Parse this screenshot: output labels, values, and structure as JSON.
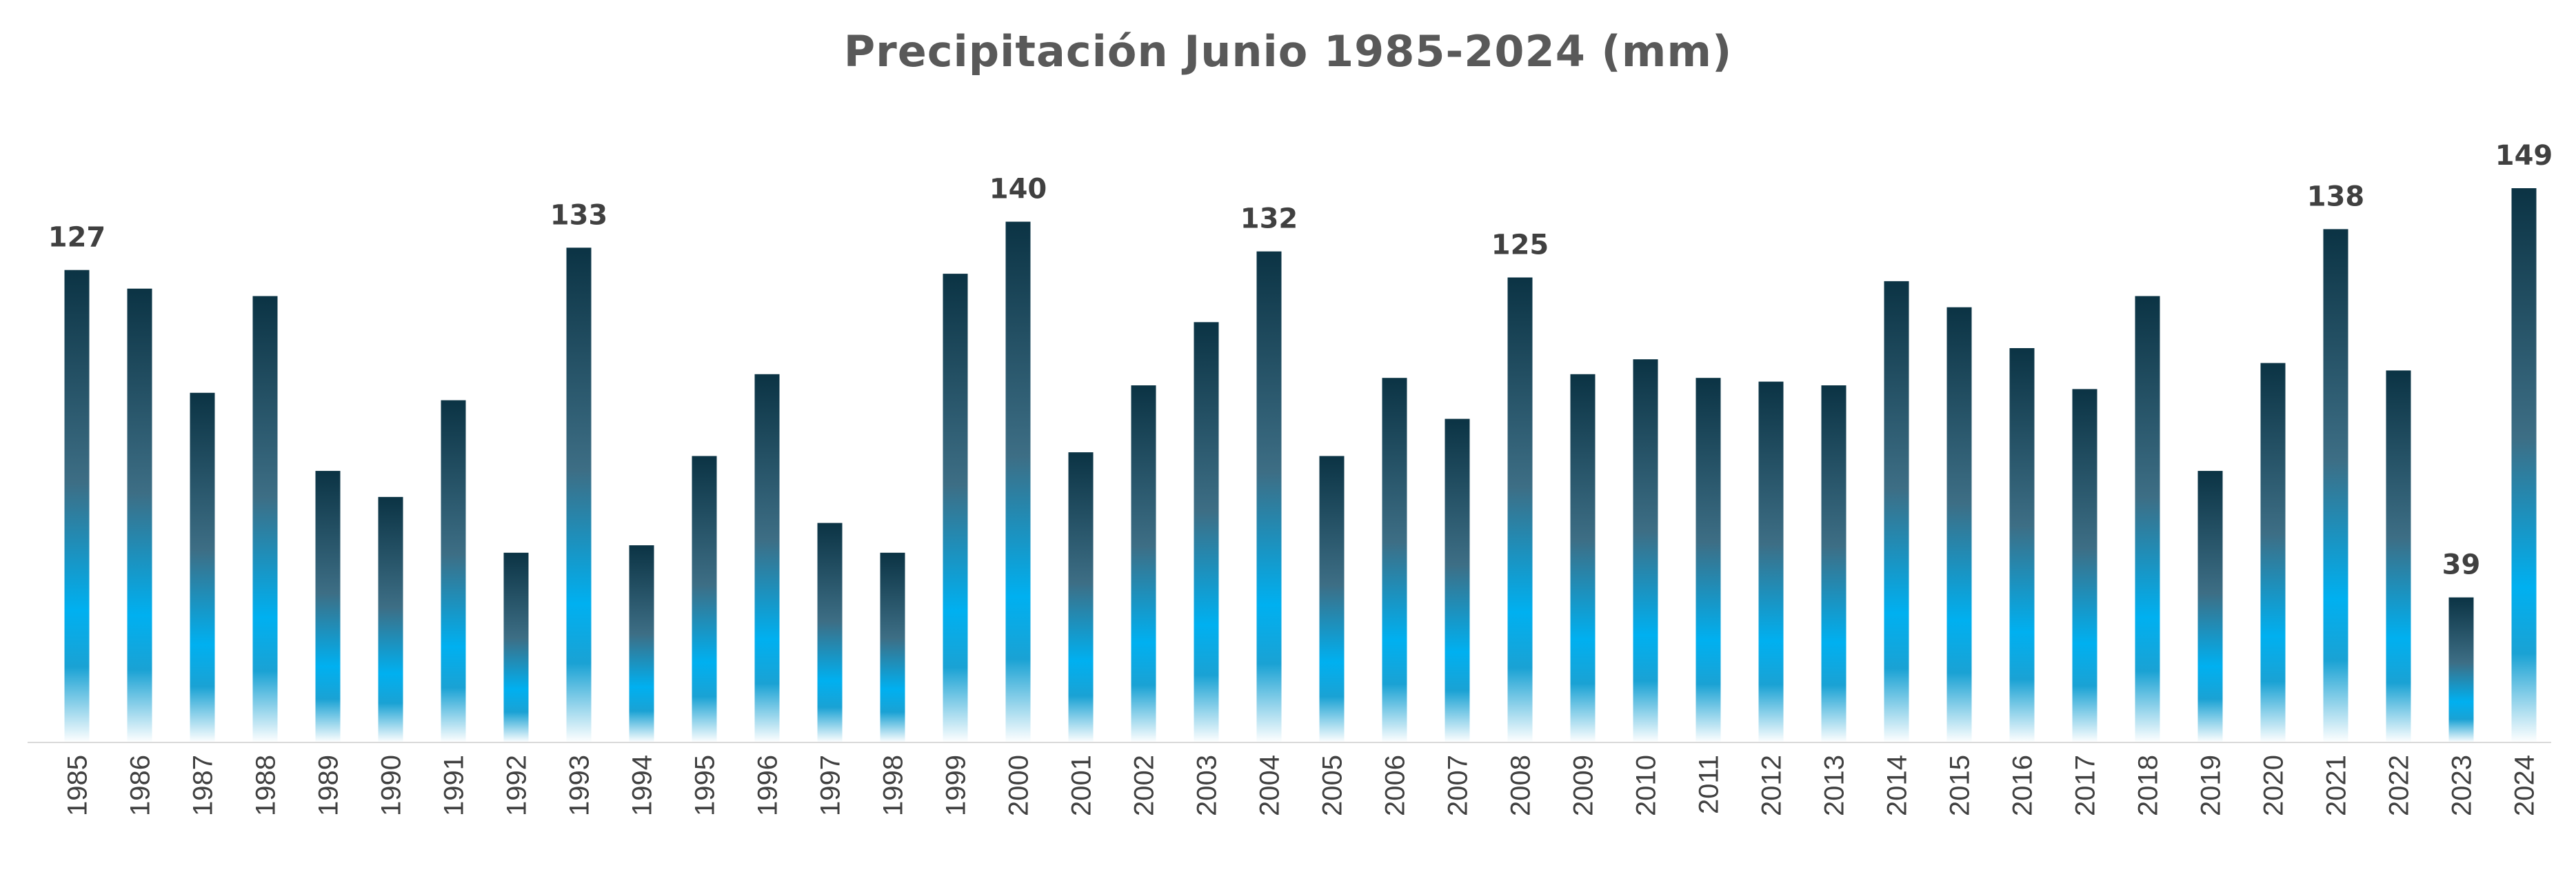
{
  "chart_data": {
    "type": "bar",
    "title": "Precipitación Junio 1985-2024 (mm)",
    "xlabel": "",
    "ylabel": "",
    "ylim": [
      0,
      155
    ],
    "grid": false,
    "legend": "none",
    "categories": [
      "1985",
      "1986",
      "1987",
      "1988",
      "1989",
      "1990",
      "1991",
      "1992",
      "1993",
      "1994",
      "1995",
      "1996",
      "1997",
      "1998",
      "1999",
      "2000",
      "2001",
      "2002",
      "2003",
      "2004",
      "2005",
      "2006",
      "2007",
      "2008",
      "2009",
      "2010",
      "2011",
      "2012",
      "2013",
      "2014",
      "2015",
      "2016",
      "2017",
      "2018",
      "2019",
      "2020",
      "2021",
      "2022",
      "2023",
      "2024"
    ],
    "values": [
      127,
      122,
      94,
      120,
      73,
      66,
      92,
      51,
      133,
      53,
      77,
      99,
      59,
      51,
      126,
      140,
      78,
      96,
      113,
      132,
      77,
      98,
      87,
      125,
      99,
      103,
      98,
      97,
      96,
      124,
      117,
      106,
      95,
      120,
      73,
      102,
      138,
      100,
      39,
      149
    ],
    "data_labels": [
      {
        "category": "1985",
        "text": "127"
      },
      {
        "category": "1993",
        "text": "133"
      },
      {
        "category": "2000",
        "text": "140"
      },
      {
        "category": "2004",
        "text": "132"
      },
      {
        "category": "2008",
        "text": "125"
      },
      {
        "category": "2021",
        "text": "138"
      },
      {
        "category": "2023",
        "text": "39"
      },
      {
        "category": "2024",
        "text": "149"
      }
    ],
    "colors": {
      "bar_top": "#0b3344",
      "bar_mid_dark": "#3d6e85",
      "bar_mid": "#1aa2d4",
      "bar_bright": "#00b0f0",
      "bar_bottom": "#ffffff",
      "axis": "#d9d9d9",
      "text": "#404040",
      "title": "#595959"
    }
  }
}
